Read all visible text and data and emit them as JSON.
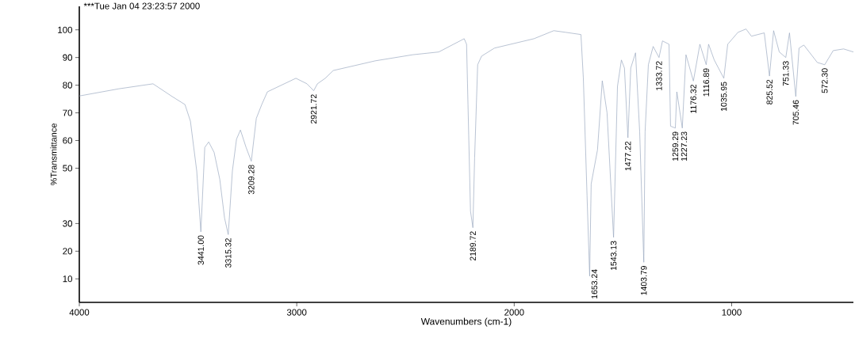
{
  "chart_data": {
    "type": "line",
    "title": "***Tue Jan 04 23:23:57 2000",
    "xlabel": "Wavenumbers (cm-1)",
    "ylabel": "%Transmittance",
    "xlim": [
      4000,
      440
    ],
    "xticks": [
      4000,
      3000,
      2000,
      1000
    ],
    "ylim": [
      1.5,
      108.5
    ],
    "yticks": [
      10,
      20,
      30,
      50,
      60,
      70,
      80,
      90,
      100
    ],
    "line_style": "solid",
    "series": [
      {
        "color": "#9aa8c0",
        "x": [
          4000,
          3818,
          3661,
          3573,
          3514,
          3489,
          3460,
          3441,
          3423,
          3405,
          3380,
          3354,
          3332,
          3315,
          3296,
          3277,
          3259,
          3233,
          3209,
          3186,
          3161,
          3135,
          3004,
          2953,
          2922,
          2905,
          2869,
          2832,
          2639,
          2467,
          2347,
          2230,
          2219,
          2201,
          2190,
          2182,
          2168,
          2150,
          2091,
          1909,
          1818,
          1763,
          1693,
          1682,
          1665,
          1653,
          1646,
          1617,
          1595,
          1573,
          1543,
          1525,
          1507,
          1493,
          1477,
          1464,
          1442,
          1423,
          1404,
          1398,
          1383,
          1361,
          1334,
          1318,
          1288,
          1281,
          1259,
          1252,
          1227,
          1210,
          1176,
          1146,
          1117,
          1106,
          1080,
          1036,
          1018,
          971,
          934,
          909,
          850,
          826,
          807,
          781,
          751,
          734,
          705,
          690,
          668,
          606,
          572,
          533,
          485,
          440
        ],
        "values": [
          76.1,
          78.7,
          80.5,
          75.9,
          73,
          67,
          49,
          27,
          57.5,
          59.5,
          55.7,
          46,
          32,
          26,
          49,
          60.5,
          63.8,
          57.5,
          52.5,
          68,
          73,
          77.6,
          82.5,
          80.5,
          78,
          80.5,
          82.5,
          85.3,
          88.8,
          91,
          92,
          96.8,
          94.8,
          34.5,
          28.5,
          53.7,
          87.4,
          90.5,
          93.4,
          96.8,
          99.7,
          99.1,
          98.3,
          82.5,
          40,
          11,
          44.3,
          56.6,
          81.6,
          70,
          25,
          79.6,
          89.1,
          86.2,
          61,
          86.2,
          91.7,
          63.2,
          16,
          63.2,
          87.4,
          94,
          90,
          96,
          94.8,
          65.2,
          64.5,
          77.6,
          64.5,
          91,
          81.5,
          94.8,
          87.4,
          94.8,
          89.1,
          82.5,
          94.8,
          99.1,
          100.3,
          97.7,
          98.9,
          83.3,
          99.7,
          92,
          90,
          98.9,
          75.9,
          93.4,
          94.5,
          88.2,
          87.4,
          92.5,
          93.1,
          92
        ]
      }
    ],
    "annotations": [
      {
        "text": "3441.00",
        "x": 3441,
        "y": 27
      },
      {
        "text": "3315.32",
        "x": 3315,
        "y": 26
      },
      {
        "text": "3209.28",
        "x": 3209,
        "y": 52.5
      },
      {
        "text": "2921.72",
        "x": 2922,
        "y": 78
      },
      {
        "text": "2189.72",
        "x": 2190,
        "y": 28.5
      },
      {
        "text": "1653.24",
        "x": 1653,
        "y": 11
      },
      {
        "text": "1543.13",
        "x": 1543,
        "y": 25
      },
      {
        "text": "1477.22",
        "x": 1477,
        "y": 61
      },
      {
        "text": "1403.79",
        "x": 1404,
        "y": 16
      },
      {
        "text": "1333.72",
        "x": 1334,
        "y": 90
      },
      {
        "text": "1259.29",
        "x": 1259,
        "y": 64.5
      },
      {
        "text": "1227.23",
        "x": 1227,
        "y": 64.5
      },
      {
        "text": "1176.32",
        "x": 1176,
        "y": 81.5
      },
      {
        "text": "1116.89",
        "x": 1117,
        "y": 87.4
      },
      {
        "text": "1035.95",
        "x": 1036,
        "y": 82.5
      },
      {
        "text": "825.52",
        "x": 826,
        "y": 83.3
      },
      {
        "text": "751.33",
        "x": 751,
        "y": 90
      },
      {
        "text": "705.46",
        "x": 705,
        "y": 75.9
      },
      {
        "text": "572.30",
        "x": 572,
        "y": 87.4
      }
    ]
  }
}
